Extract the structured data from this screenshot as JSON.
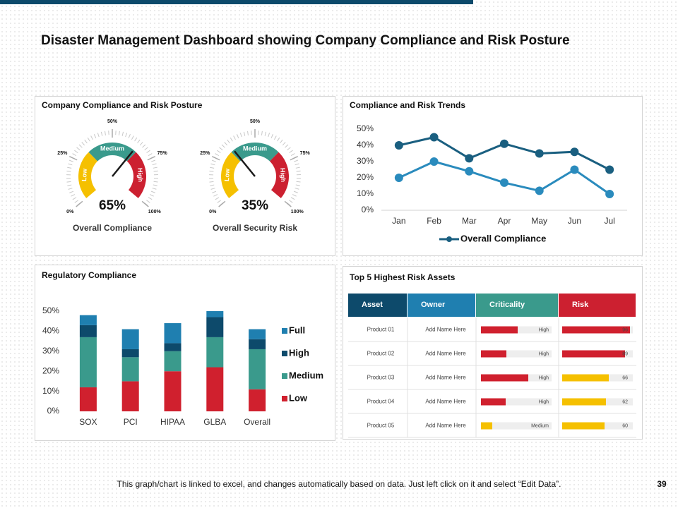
{
  "header": {
    "title": "Disaster Management Dashboard showing Company Compliance and Risk Posture"
  },
  "chart_data": [
    {
      "type": "gauge",
      "title": "Company Compliance and Risk Posture",
      "lim": [
        0,
        100
      ],
      "ticks": [
        {
          "value": 0,
          "label": "0%"
        },
        {
          "value": 25,
          "label": "25%"
        },
        {
          "value": 50,
          "label": "50%"
        },
        {
          "value": 75,
          "label": "75%"
        },
        {
          "value": 100,
          "label": "100%"
        }
      ],
      "zones": [
        {
          "name": "Low",
          "range": [
            0,
            33
          ],
          "color": "#f5c000"
        },
        {
          "name": "Medium",
          "range": [
            33,
            67
          ],
          "color": "#3a9a8c"
        },
        {
          "name": "High",
          "range": [
            67,
            100
          ],
          "color": "#cc2030"
        }
      ],
      "needle_color": "#1a1a1a",
      "gauges": [
        {
          "value": 65,
          "value_label": "65%",
          "label": "Overall Compliance"
        },
        {
          "value": 35,
          "value_label": "35%",
          "label": "Overall Security Risk"
        }
      ]
    },
    {
      "type": "line",
      "title": "Compliance and Risk Trends",
      "categories": [
        "Jan",
        "Feb",
        "Mar",
        "Apr",
        "May",
        "Jun",
        "Jul"
      ],
      "series": [
        {
          "name": "Overall Compliance",
          "color": "#1a5f80",
          "values": [
            40,
            45,
            32,
            41,
            35,
            36,
            25
          ]
        },
        {
          "color": "#2a8bbd",
          "values": [
            20,
            30,
            24,
            17,
            12,
            25,
            10
          ]
        }
      ],
      "ylim": [
        0,
        50
      ],
      "yticks": [
        {
          "value": 0,
          "label": "0%"
        },
        {
          "value": 10,
          "label": "10%"
        },
        {
          "value": 20,
          "label": "20%"
        },
        {
          "value": 30,
          "label": "30%"
        },
        {
          "value": 40,
          "label": "40%"
        },
        {
          "value": 50,
          "label": "50%"
        }
      ],
      "grid": false,
      "legend": "bottom"
    },
    {
      "type": "stacked_bar",
      "title": "Regulatory Compliance",
      "categories": [
        "SOX",
        "PCI",
        "HIPAA",
        "GLBA",
        "Overall"
      ],
      "series": [
        {
          "name": "Low",
          "color": "#d0202e",
          "values": [
            12,
            15,
            20,
            22,
            11
          ]
        },
        {
          "name": "Medium",
          "color": "#3a9a8c",
          "values": [
            25,
            12,
            10,
            15,
            20
          ]
        },
        {
          "name": "High",
          "color": "#0d4a6b",
          "values": [
            6,
            4,
            4,
            10,
            5
          ]
        },
        {
          "name": "Full",
          "color": "#1f7fb0",
          "values": [
            5,
            10,
            10,
            3,
            5
          ]
        }
      ],
      "ylim": [
        0,
        50
      ],
      "yticks": [
        {
          "value": 0,
          "label": "0%"
        },
        {
          "value": 10,
          "label": "10%"
        },
        {
          "value": 20,
          "label": "20%"
        },
        {
          "value": 30,
          "label": "30%"
        },
        {
          "value": 40,
          "label": "40%"
        },
        {
          "value": 50,
          "label": "50%"
        }
      ],
      "grid": false,
      "legend": "right"
    }
  ],
  "table": {
    "title": "Top 5 Highest Risk Assets",
    "columns": [
      {
        "name": "Asset",
        "color": "#0d4a6b"
      },
      {
        "name": "Owner",
        "color": "#1f7fb0"
      },
      {
        "name": "Criticality",
        "color": "#3a9a8c"
      },
      {
        "name": "Risk",
        "color": "#cc2030"
      }
    ],
    "rows": [
      [
        "Product 01",
        "Add Name Here",
        "High",
        96
      ],
      [
        "Product 02",
        "Add Name Here",
        "High",
        89
      ],
      [
        "Product 03",
        "Add Name Here",
        "High",
        66
      ],
      [
        "Product 04",
        "Add Name Here",
        "High",
        62
      ],
      [
        "Product 05",
        "Add Name Here",
        "Medium",
        60
      ]
    ],
    "criticality_scores": [
      52,
      36,
      67,
      35,
      16
    ],
    "criticality_colors": {
      "High": "#d0202e",
      "Medium": "#f5c000"
    },
    "risk_colors": [
      "#d0202e",
      "#d0202e",
      "#f5c000",
      "#f5c000",
      "#f5c000"
    ]
  },
  "footer": {
    "note": "This graph/chart is linked to excel, and changes automatically based on data. Just left click on it and select “Edit Data”.",
    "page_number": 39
  }
}
